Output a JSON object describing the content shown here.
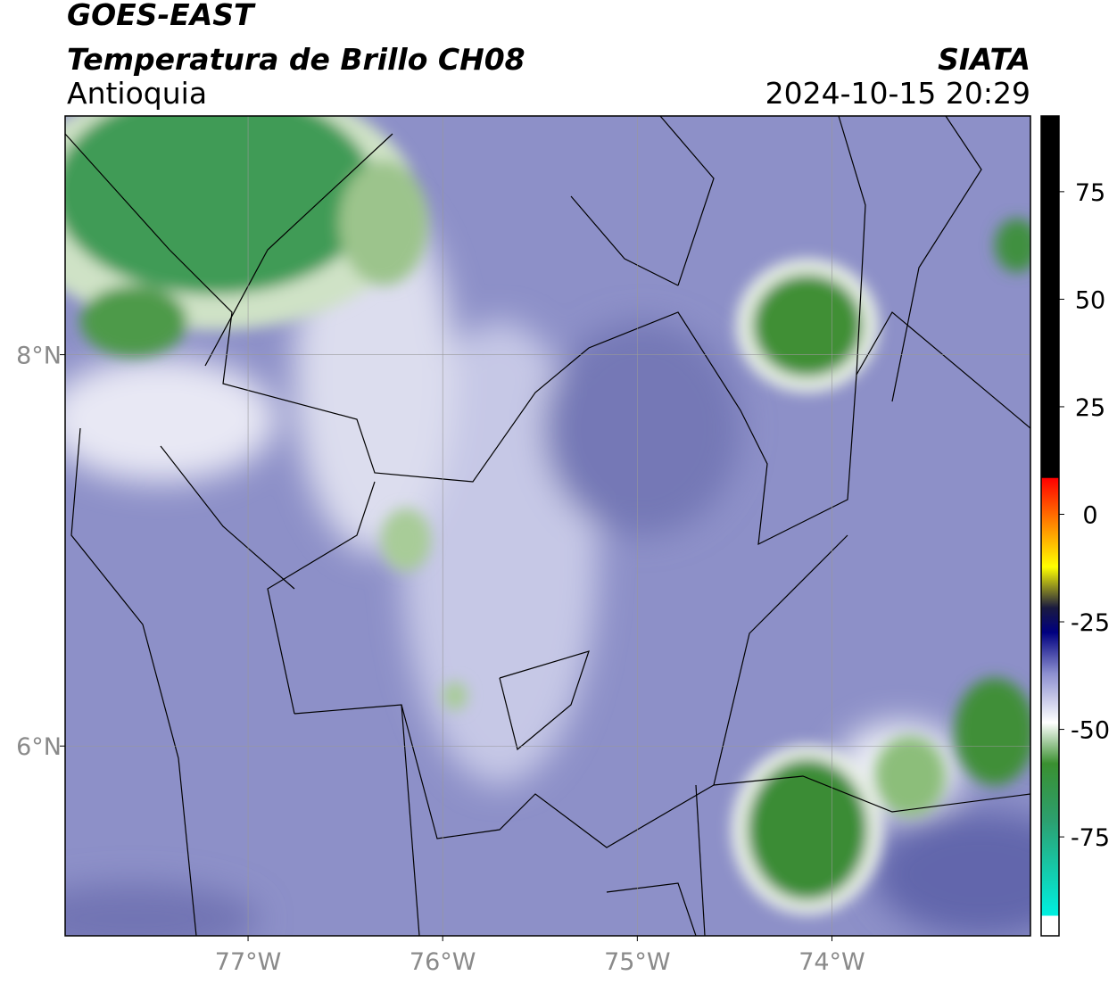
{
  "header": {
    "title": "GOES-EAST",
    "subtitle": "Temperatura de Brillo CH08",
    "region": "Antioquia",
    "source": "SIATA",
    "datetime": "2024-10-15 20:29"
  },
  "map": {
    "xlim": [
      -77.94,
      -72.98
    ],
    "ylim": [
      5.03,
      9.22
    ],
    "xticks": [
      {
        "value": -77,
        "label": "77°W"
      },
      {
        "value": -76,
        "label": "76°W"
      },
      {
        "value": -75,
        "label": "75°W"
      },
      {
        "value": -74,
        "label": "74°W"
      }
    ],
    "yticks": [
      {
        "value": 8,
        "label": "8°N"
      },
      {
        "value": 6,
        "label": "6°N"
      }
    ]
  },
  "colorbar": {
    "lim": [
      -98,
      92.6
    ],
    "ticks": [
      75,
      50,
      25,
      0,
      -25,
      -50,
      -75
    ]
  }
}
